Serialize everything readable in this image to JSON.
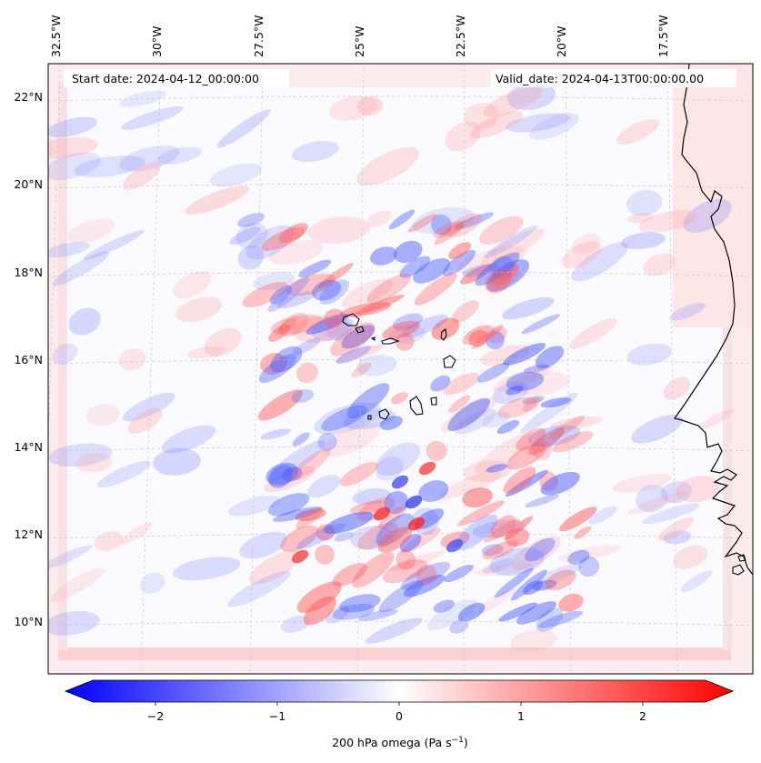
{
  "header": {
    "start_date": "Start date: 2024-04-12_00:00:00",
    "valid_date": "Valid_date: 2024-04-13T00:00:00.00"
  },
  "map": {
    "lon_labels": [
      "32.5°W",
      "30°W",
      "27.5°W",
      "25°W",
      "22.5°W",
      "20°W",
      "17.5°W"
    ],
    "lat_labels": [
      "22°N",
      "20°N",
      "18°N",
      "16°N",
      "14°N",
      "12°N",
      "10°N"
    ],
    "lat_values": [
      22,
      20,
      18,
      16,
      14,
      12,
      10
    ],
    "lon_values": [
      -32.5,
      -30,
      -27.5,
      -25,
      -22.5,
      -20,
      -17.5
    ],
    "islands": [
      "Santo Antão",
      "São Vicente",
      "São Nicolau",
      "Sal",
      "Boa Vista",
      "Santiago",
      "Fogo",
      "Maio",
      "Brava"
    ],
    "coastline": "West Africa (Mauritania, Senegal, Gambia, Guinea-Bissau)"
  },
  "colorbar": {
    "label": "200 hPa omega (Pa s",
    "label_sup": "−1",
    "label_end": ")",
    "ticks": [
      "−2",
      "−1",
      "0",
      "1",
      "2"
    ],
    "tick_values": [
      -2,
      -1,
      0,
      1,
      2
    ],
    "range": [
      -2.75,
      2.75
    ],
    "colors": {
      "negative": "#0000ff",
      "zero": "#ffffff",
      "positive": "#ff0000"
    }
  }
}
